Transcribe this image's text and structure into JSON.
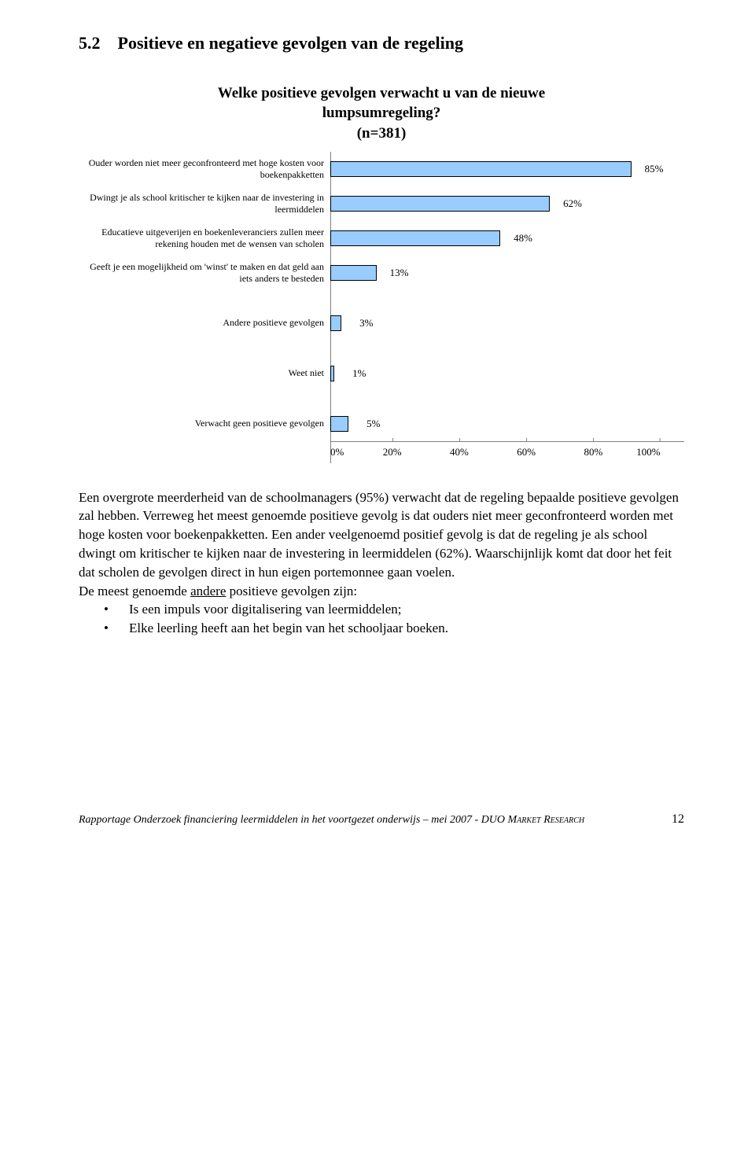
{
  "heading": "5.2 Positieve en negatieve gevolgen van de regeling",
  "chart": {
    "type": "bar",
    "title_line1": "Welke positieve gevolgen verwacht u van de nieuwe",
    "title_line2": "lumpsumregeling?",
    "title_line3": "(n=381)",
    "bar_fill": "#99ccff",
    "bar_border": "#000000",
    "axis_color": "#808080",
    "label_fontsize": 12,
    "value_fontsize": 13,
    "xticks": [
      "0%",
      "20%",
      "40%",
      "60%",
      "80%",
      "100%"
    ],
    "xlim": [
      0,
      100
    ],
    "categories": [
      {
        "label": "Ouder worden niet meer geconfronteerd met hoge kosten voor boekenpakketten",
        "value": 85,
        "value_label": "85%"
      },
      {
        "label": "Dwingt je als school kritischer te kijken naar de investering in leermiddelen",
        "value": 62,
        "value_label": "62%"
      },
      {
        "label": "Educatieve uitgeverijen en boekenleveranciers zullen meer rekening houden met de wensen van scholen",
        "value": 48,
        "value_label": "48%"
      },
      {
        "label": "Geeft je een mogelijkheid om 'winst' te maken en dat geld aan iets anders te besteden",
        "value": 13,
        "value_label": "13%"
      },
      {
        "label": "Andere positieve gevolgen",
        "value": 3,
        "value_label": "3%"
      },
      {
        "label": "Weet niet",
        "value": 1,
        "value_label": "1%"
      },
      {
        "label": "Verwacht geen positieve gevolgen",
        "value": 5,
        "value_label": "5%"
      }
    ]
  },
  "paragraph1": "Een overgrote meerderheid van de schoolmanagers (95%) verwacht dat de regeling bepaalde positieve gevolgen zal hebben. Verreweg het meest genoemde positieve gevolg is dat ouders niet meer geconfronteerd worden met hoge kosten voor boekenpakketten. Een ander veelgenoemd positief gevolg is dat de regeling je als school dwingt om kritischer te kijken naar de investering in leermiddelen (62%). Waarschijnlijk komt dat door het feit dat scholen de gevolgen direct in hun eigen portemonnee gaan voelen.",
  "para2_a": "De meest genoemde ",
  "para2_u": "andere",
  "para2_b": " positieve gevolgen zijn:",
  "bullets": [
    "Is een impuls voor digitalisering van leermiddelen;",
    "Elke leerling heeft aan het begin van het schooljaar boeken."
  ],
  "footer_left_a": "Rapportage Onderzoek financiering leermiddelen in het voortgezet onderwijs – mei 2007 - ",
  "footer_left_b": "DUO Market Research",
  "footer_page": "12"
}
